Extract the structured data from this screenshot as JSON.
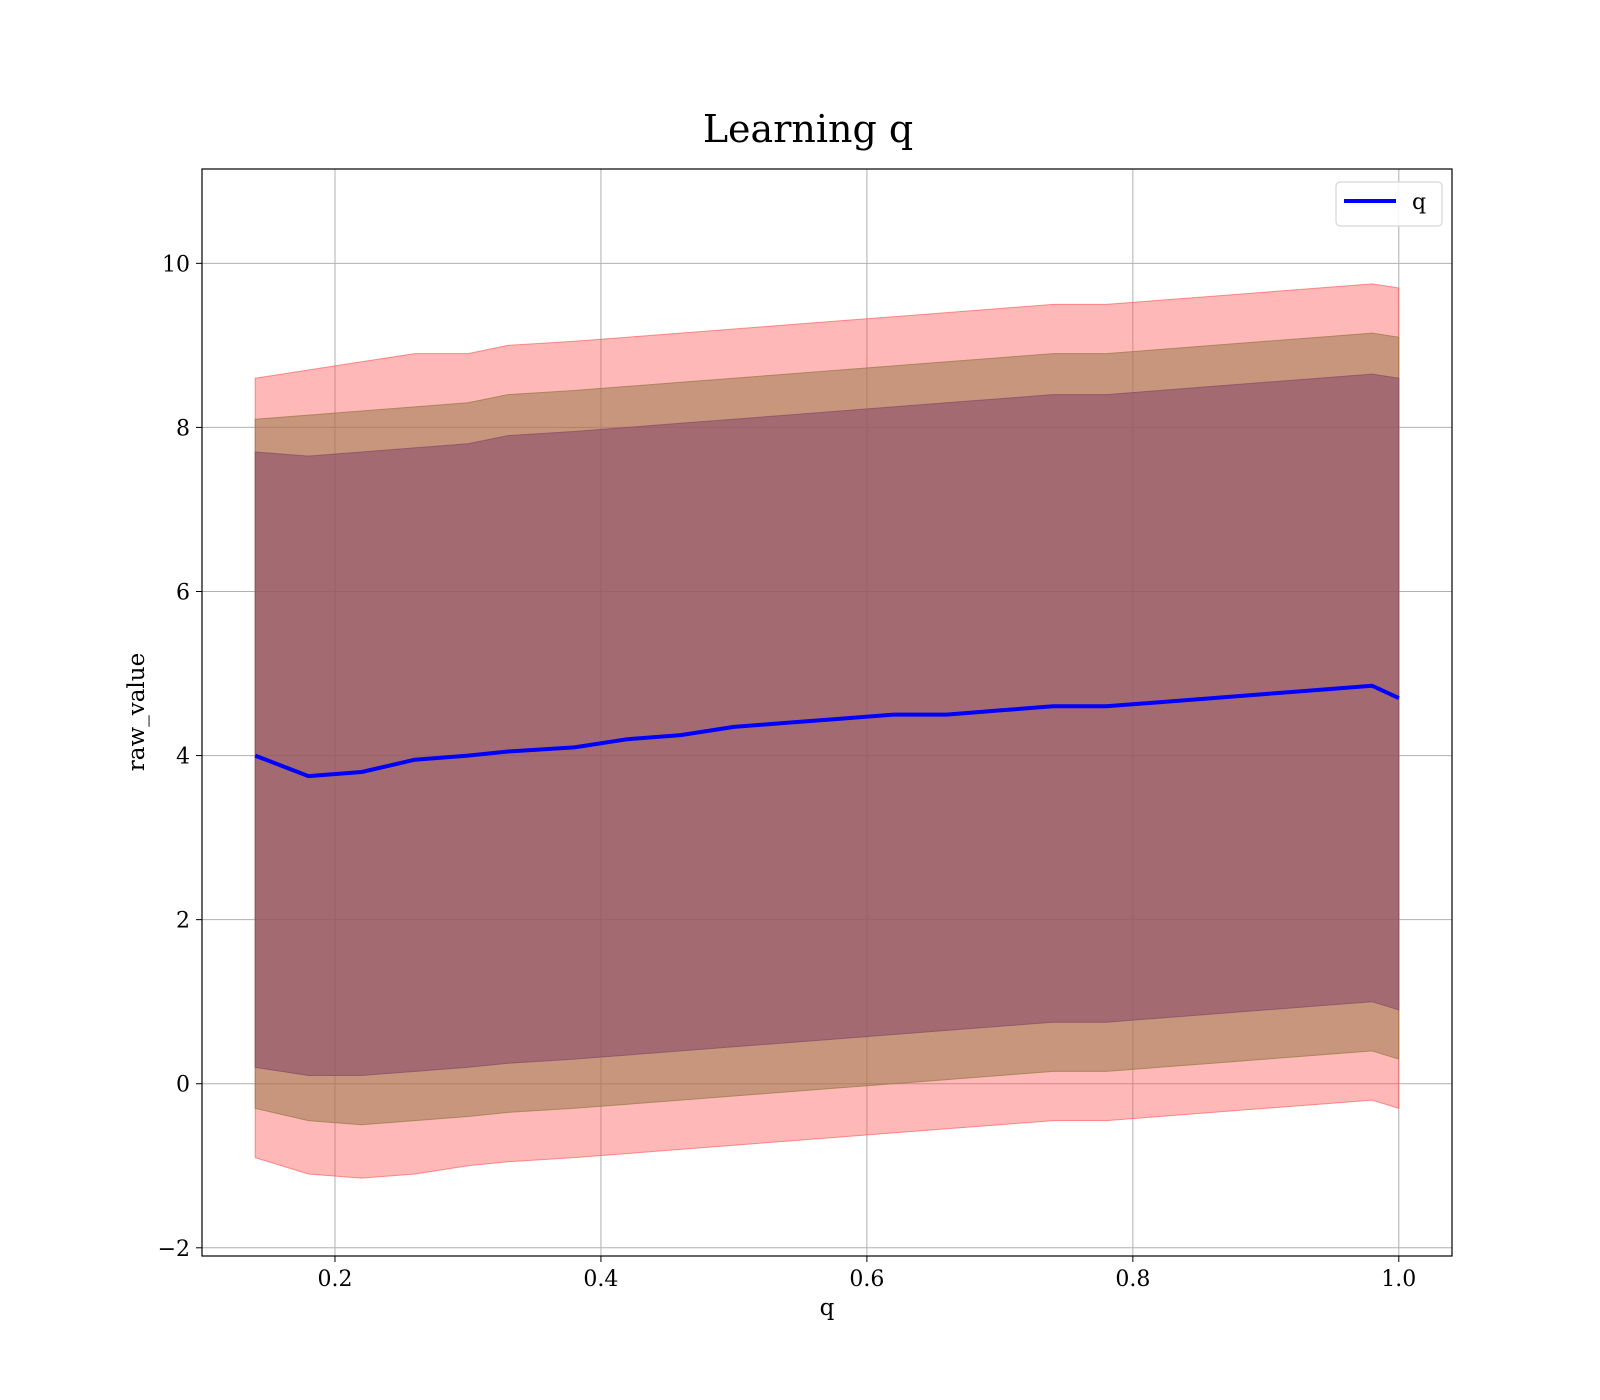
{
  "chart_data": {
    "type": "line",
    "title": "Learning q",
    "xlabel": "q",
    "ylabel": "raw_value",
    "xlim": [
      0.1,
      1.04
    ],
    "ylim": [
      -2.1,
      11.15
    ],
    "xticks": [
      0.2,
      0.4,
      0.6,
      0.8,
      1.0
    ],
    "xtick_labels": [
      "0.2",
      "0.4",
      "0.6",
      "0.8",
      "1.0"
    ],
    "yticks": [
      -2,
      0,
      2,
      4,
      6,
      8,
      10
    ],
    "ytick_labels": [
      "−2",
      "0",
      "2",
      "4",
      "6",
      "8",
      "10"
    ],
    "grid": true,
    "legend": {
      "position": "top-right",
      "entries": [
        {
          "label": "q",
          "color": "#0000ff"
        }
      ]
    },
    "x": [
      0.14,
      0.18,
      0.22,
      0.26,
      0.3,
      0.33,
      0.38,
      0.42,
      0.46,
      0.5,
      0.54,
      0.58,
      0.62,
      0.66,
      0.7,
      0.74,
      0.78,
      0.82,
      0.86,
      0.9,
      0.94,
      0.98,
      1.0
    ],
    "series": [
      {
        "name": "q",
        "color": "#0000ff",
        "y": [
          4.0,
          3.75,
          3.8,
          3.95,
          4.0,
          4.05,
          4.1,
          4.2,
          4.25,
          4.35,
          4.4,
          4.45,
          4.5,
          4.5,
          4.55,
          4.6,
          4.6,
          4.65,
          4.7,
          4.75,
          4.8,
          4.85,
          4.7
        ]
      }
    ],
    "bands": [
      {
        "role": "outer",
        "color": "#ff4d4d",
        "opacity": 0.4,
        "upper": [
          8.6,
          8.7,
          8.8,
          8.9,
          8.9,
          9.0,
          9.05,
          9.1,
          9.15,
          9.2,
          9.25,
          9.3,
          9.35,
          9.4,
          9.45,
          9.5,
          9.5,
          9.55,
          9.6,
          9.65,
          9.7,
          9.75,
          9.7
        ],
        "lower": [
          -0.9,
          -1.1,
          -1.15,
          -1.1,
          -1.0,
          -0.95,
          -0.9,
          -0.85,
          -0.8,
          -0.75,
          -0.7,
          -0.65,
          -0.6,
          -0.55,
          -0.5,
          -0.45,
          -0.45,
          -0.4,
          -0.35,
          -0.3,
          -0.25,
          -0.2,
          -0.3
        ]
      },
      {
        "role": "middle",
        "color": "#9b7a4a",
        "opacity": 0.55,
        "upper": [
          8.1,
          8.15,
          8.2,
          8.25,
          8.3,
          8.4,
          8.45,
          8.5,
          8.55,
          8.6,
          8.65,
          8.7,
          8.75,
          8.8,
          8.85,
          8.9,
          8.9,
          8.95,
          9.0,
          9.05,
          9.1,
          9.15,
          9.1
        ],
        "lower": [
          -0.3,
          -0.45,
          -0.5,
          -0.45,
          -0.4,
          -0.35,
          -0.3,
          -0.25,
          -0.2,
          -0.15,
          -0.1,
          -0.05,
          0.0,
          0.05,
          0.1,
          0.15,
          0.15,
          0.2,
          0.25,
          0.3,
          0.35,
          0.4,
          0.3
        ]
      },
      {
        "role": "inner",
        "color": "#8b4f6a",
        "opacity": 0.6,
        "upper": [
          7.7,
          7.65,
          7.7,
          7.75,
          7.8,
          7.9,
          7.95,
          8.0,
          8.05,
          8.1,
          8.15,
          8.2,
          8.25,
          8.3,
          8.35,
          8.4,
          8.4,
          8.45,
          8.5,
          8.55,
          8.6,
          8.65,
          8.6
        ],
        "lower": [
          0.2,
          0.1,
          0.1,
          0.15,
          0.2,
          0.25,
          0.3,
          0.35,
          0.4,
          0.45,
          0.5,
          0.55,
          0.6,
          0.65,
          0.7,
          0.75,
          0.75,
          0.8,
          0.85,
          0.9,
          0.95,
          1.0,
          0.9
        ]
      }
    ]
  }
}
